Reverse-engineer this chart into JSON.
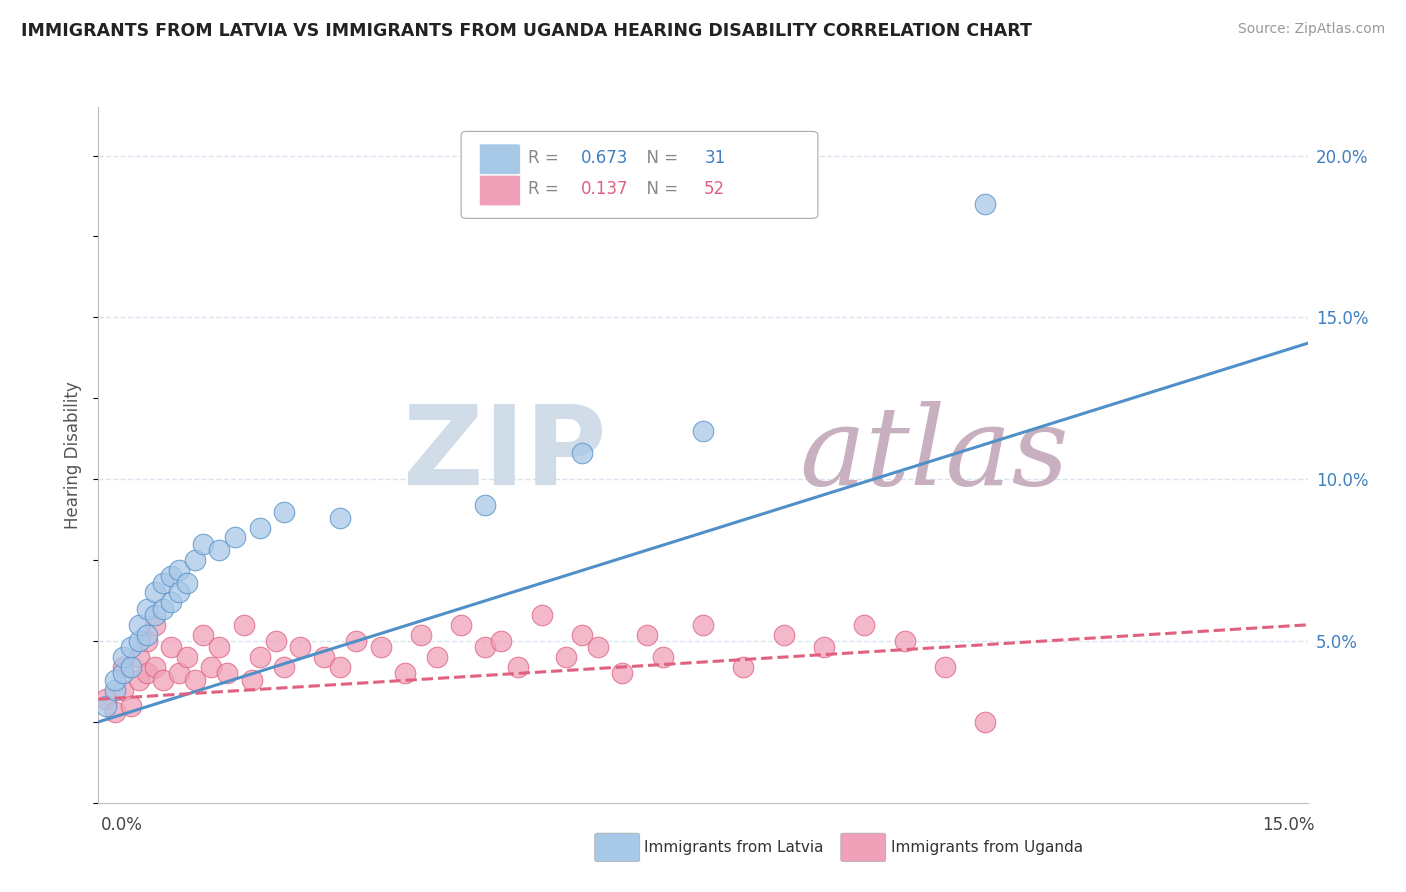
{
  "title": "IMMIGRANTS FROM LATVIA VS IMMIGRANTS FROM UGANDA HEARING DISABILITY CORRELATION CHART",
  "source": "Source: ZipAtlas.com",
  "ylabel": "Hearing Disability",
  "ytick_values": [
    0.0,
    0.05,
    0.1,
    0.15,
    0.2
  ],
  "xlim": [
    0.0,
    0.15
  ],
  "ylim": [
    0.0,
    0.215
  ],
  "legend_latvia_r": "R = ",
  "legend_latvia_r_val": "0.673",
  "legend_latvia_n": "  N = ",
  "legend_latvia_n_val": "31",
  "legend_uganda_r": "R = ",
  "legend_uganda_r_val": "0.137",
  "legend_uganda_n": "  N = ",
  "legend_uganda_n_val": "52",
  "legend_label_latvia": "Immigrants from Latvia",
  "legend_label_uganda": "Immigrants from Uganda",
  "color_latvia": "#A8C8E8",
  "color_uganda": "#F0A0B8",
  "color_latvia_line": "#5090C8",
  "color_uganda_line": "#E06080",
  "color_text_blue": "#4080C0",
  "color_text_pink": "#E06080",
  "watermark_zip": "ZIP",
  "watermark_atlas": "atlas",
  "watermark_color_zip": "#D0DCE8",
  "watermark_color_atlas": "#C8B0C0",
  "latvia_scatter_x": [
    0.001,
    0.002,
    0.002,
    0.003,
    0.003,
    0.004,
    0.004,
    0.005,
    0.005,
    0.006,
    0.006,
    0.007,
    0.007,
    0.008,
    0.008,
    0.009,
    0.009,
    0.01,
    0.01,
    0.011,
    0.012,
    0.013,
    0.015,
    0.017,
    0.02,
    0.023,
    0.03,
    0.048,
    0.06,
    0.075,
    0.11
  ],
  "latvia_scatter_y": [
    0.03,
    0.035,
    0.038,
    0.04,
    0.045,
    0.042,
    0.048,
    0.05,
    0.055,
    0.052,
    0.06,
    0.058,
    0.065,
    0.06,
    0.068,
    0.062,
    0.07,
    0.065,
    0.072,
    0.068,
    0.075,
    0.08,
    0.078,
    0.082,
    0.085,
    0.09,
    0.088,
    0.092,
    0.108,
    0.115,
    0.185
  ],
  "uganda_scatter_x": [
    0.001,
    0.002,
    0.003,
    0.003,
    0.004,
    0.005,
    0.005,
    0.006,
    0.006,
    0.007,
    0.007,
    0.008,
    0.009,
    0.01,
    0.011,
    0.012,
    0.013,
    0.014,
    0.015,
    0.016,
    0.018,
    0.019,
    0.02,
    0.022,
    0.023,
    0.025,
    0.028,
    0.03,
    0.032,
    0.035,
    0.038,
    0.04,
    0.042,
    0.045,
    0.048,
    0.05,
    0.052,
    0.055,
    0.058,
    0.06,
    0.062,
    0.065,
    0.068,
    0.07,
    0.075,
    0.08,
    0.085,
    0.09,
    0.095,
    0.1,
    0.105,
    0.11
  ],
  "uganda_scatter_y": [
    0.032,
    0.028,
    0.035,
    0.042,
    0.03,
    0.038,
    0.045,
    0.04,
    0.05,
    0.042,
    0.055,
    0.038,
    0.048,
    0.04,
    0.045,
    0.038,
    0.052,
    0.042,
    0.048,
    0.04,
    0.055,
    0.038,
    0.045,
    0.05,
    0.042,
    0.048,
    0.045,
    0.042,
    0.05,
    0.048,
    0.04,
    0.052,
    0.045,
    0.055,
    0.048,
    0.05,
    0.042,
    0.058,
    0.045,
    0.052,
    0.048,
    0.04,
    0.052,
    0.045,
    0.055,
    0.042,
    0.052,
    0.048,
    0.055,
    0.05,
    0.042,
    0.025
  ],
  "latvia_trendline_x": [
    0.0,
    0.15
  ],
  "latvia_trendline_y": [
    0.025,
    0.142
  ],
  "uganda_trendline_x": [
    0.0,
    0.15
  ],
  "uganda_trendline_y": [
    0.032,
    0.055
  ],
  "background_color": "#FFFFFF",
  "grid_color": "#D8E4F0",
  "axis_color": "#BBBBBB"
}
